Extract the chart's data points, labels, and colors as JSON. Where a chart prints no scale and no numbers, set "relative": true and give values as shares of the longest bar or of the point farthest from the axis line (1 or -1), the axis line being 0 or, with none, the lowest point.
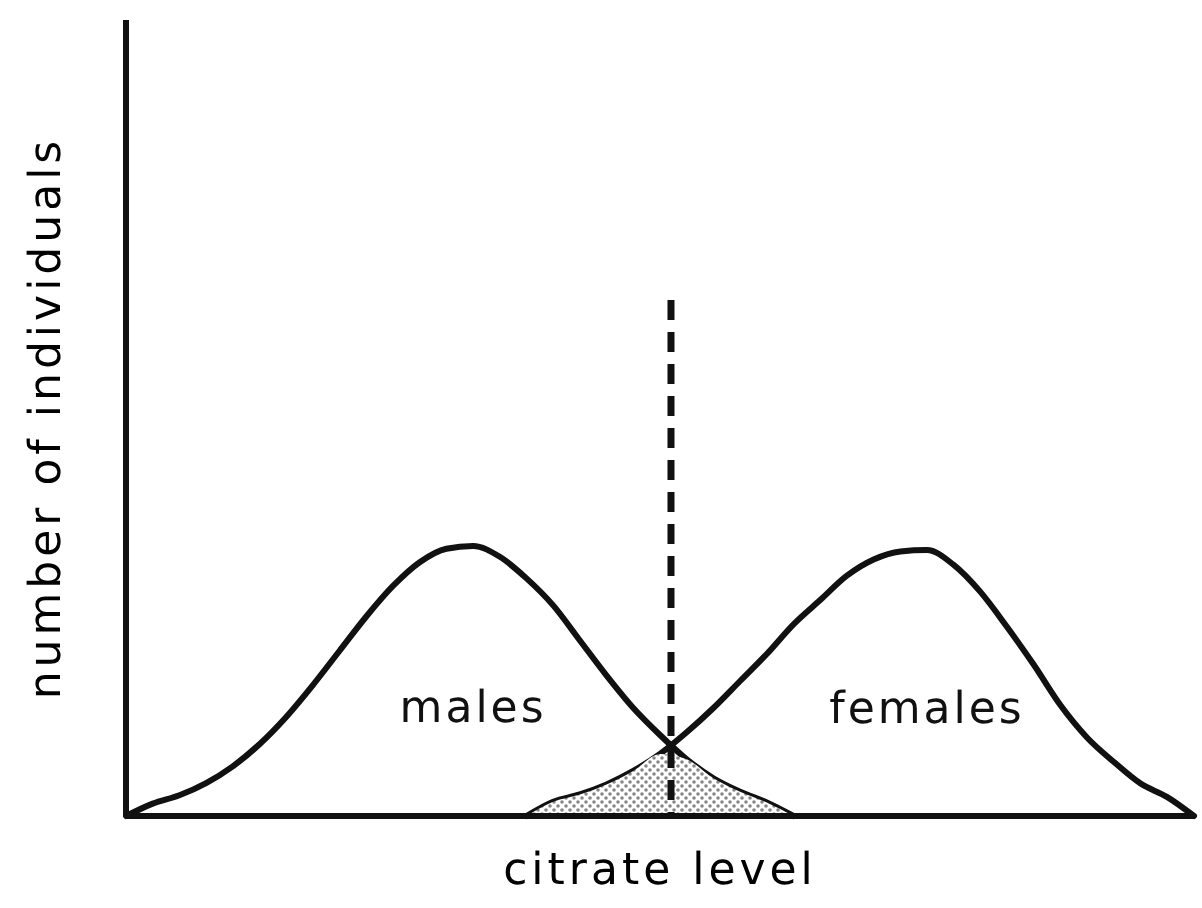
{
  "chart_data": {
    "type": "line",
    "relative": true,
    "xlabel": "citrate level",
    "ylabel": "number of individuals",
    "categories": [
      null,
      null,
      null,
      null,
      null,
      null,
      null,
      null,
      null,
      null,
      null,
      null,
      null,
      null,
      null,
      null,
      null,
      null,
      null,
      null,
      null,
      null,
      null,
      null,
      null,
      null,
      null,
      null,
      null,
      null,
      null,
      null,
      null,
      null,
      null,
      null,
      null,
      null,
      null,
      null,
      null
    ],
    "series": [
      {
        "name": "males",
        "color": "#111111",
        "values": [
          0,
          0.046,
          0.077,
          0.122,
          0.184,
          0.266,
          0.367,
          0.485,
          0.612,
          0.739,
          0.852,
          0.94,
          0.99,
          1.0,
          0.96,
          0.88,
          0.78,
          0.65,
          0.52,
          0.4,
          0.3,
          0.21,
          0.14,
          0.09,
          0.05,
          0,
          null,
          null,
          null,
          null,
          null,
          null,
          null,
          null,
          null,
          null,
          null,
          null,
          null,
          null,
          null
        ]
      },
      {
        "name": "females",
        "color": "#111111",
        "values": [
          null,
          null,
          null,
          null,
          null,
          null,
          null,
          null,
          null,
          null,
          null,
          null,
          null,
          null,
          null,
          0,
          0.053,
          0.08,
          0.117,
          0.167,
          0.23,
          0.31,
          0.4,
          0.5,
          0.6,
          0.71,
          0.8,
          0.89,
          0.95,
          0.98,
          0.985,
          0.93,
          0.83,
          0.7,
          0.56,
          0.41,
          0.29,
          0.2,
          0.12,
          0.07,
          0
        ]
      },
      {
        "type": "area",
        "color": "#888888",
        "values": [
          null,
          null,
          null,
          null,
          null,
          null,
          null,
          null,
          null,
          null,
          null,
          null,
          null,
          null,
          null,
          0,
          0.053,
          0.08,
          0.117,
          0.167,
          0.23,
          0.21,
          0.14,
          0.09,
          0.05,
          0,
          null,
          null,
          null,
          null,
          null,
          null,
          null,
          null,
          null,
          null,
          null,
          null,
          null,
          null,
          null
        ]
      }
    ],
    "legend": false,
    "grid": false,
    "marker": "none",
    "line_style": "solid"
  }
}
